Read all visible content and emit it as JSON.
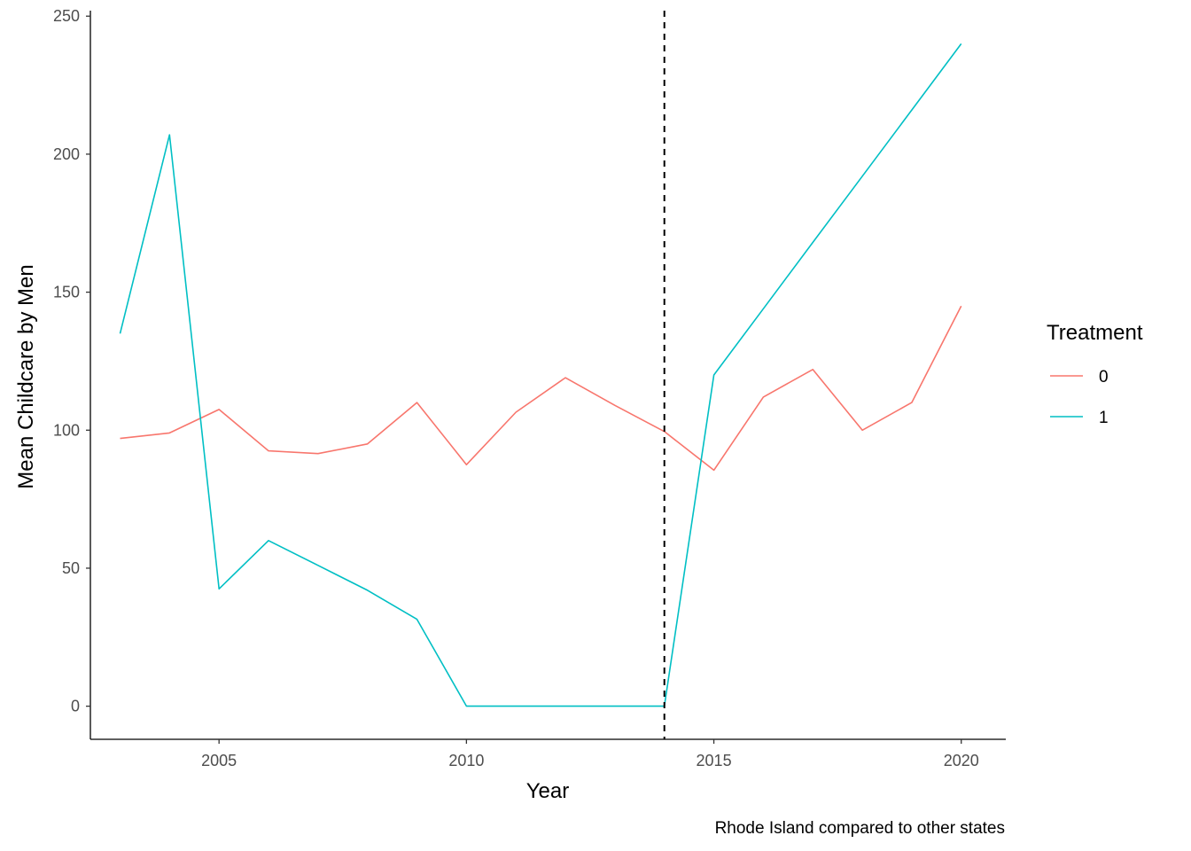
{
  "chart_data": {
    "type": "line",
    "title": "",
    "xlabel": "Year",
    "ylabel": "Mean Childcare by Men",
    "caption": "Rhode Island compared to other states",
    "xlim": [
      2002.4,
      2020.9
    ],
    "ylim": [
      -12,
      252
    ],
    "x_ticks": [
      2005,
      2010,
      2015,
      2020
    ],
    "y_ticks": [
      0,
      50,
      100,
      150,
      200,
      250
    ],
    "grid": false,
    "vline": {
      "x": 2014,
      "style": "dashed",
      "color": "#000000"
    },
    "legend": {
      "title": "Treatment",
      "position": "right"
    },
    "series": [
      {
        "name": "0",
        "color": "#F8766D",
        "x": [
          2003,
          2004,
          2005,
          2006,
          2007,
          2008,
          2009,
          2010,
          2011,
          2012,
          2013,
          2014,
          2015,
          2016,
          2017,
          2018,
          2019,
          2020
        ],
        "values": [
          97,
          99,
          107.5,
          92.5,
          91.5,
          95,
          110,
          87.5,
          106.5,
          119,
          109,
          99.5,
          85.5,
          112,
          122,
          100,
          110,
          145
        ]
      },
      {
        "name": "1",
        "color": "#00BFC4",
        "x": [
          2003,
          2004,
          2005,
          2006,
          2007,
          2008,
          2009,
          2010,
          2011,
          2012,
          2013,
          2014,
          2015,
          2016,
          2017,
          2018,
          2019,
          2020
        ],
        "values": [
          135,
          207,
          42.5,
          60,
          51,
          42,
          31.5,
          0,
          0,
          0,
          0,
          0,
          120,
          144,
          168,
          192,
          216,
          240
        ]
      }
    ]
  }
}
